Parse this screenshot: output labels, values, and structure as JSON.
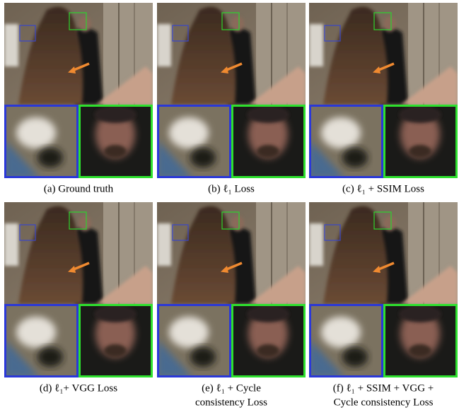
{
  "panels": [
    {
      "caption_lines": [
        "(a) Ground truth"
      ]
    },
    {
      "caption_lines": [
        "(b) ℓ₁ Loss"
      ]
    },
    {
      "caption_lines": [
        "(c) ℓ₁ + SSIM Loss"
      ]
    },
    {
      "caption_lines": [
        "(d) ℓ₁+ VGG Loss"
      ]
    },
    {
      "caption_lines": [
        "(e) ℓ₁ + Cycle",
        "consistency Loss"
      ]
    },
    {
      "caption_lines": [
        "(f) ℓ₁ + SSIM + VGG +",
        "Cycle consistency Loss"
      ]
    }
  ]
}
